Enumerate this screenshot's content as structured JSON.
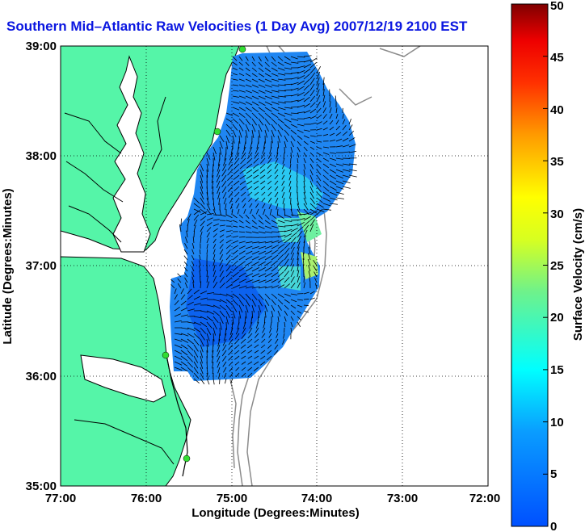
{
  "title": "Southern Mid–Atlantic Raw Velocities (1 Day Avg) 2007/12/19 2100 EST",
  "map": {
    "xlabel": "Longitude (Degrees:Minutes)",
    "ylabel": "Latitude (Degrees:Minutes)",
    "x_ticks": [
      "77:00",
      "76:00",
      "75:00",
      "74:00",
      "73:00",
      "72:00"
    ],
    "y_ticks": [
      "39:00",
      "38:00",
      "37:00",
      "36:00",
      "35:00"
    ],
    "lon_range": [
      -77,
      -72
    ],
    "lat_range": [
      35,
      39
    ],
    "grid": "dotted",
    "colors": {
      "land": "#55f5a8",
      "coast": "#000000",
      "bathymetry": "#909090",
      "vectors": "#000000",
      "stations": "#33dd33"
    }
  },
  "colorbar": {
    "label": "Surface Velocity (cm/s)",
    "ticks": [
      "0",
      "5",
      "10",
      "15",
      "20",
      "25",
      "30",
      "35",
      "40",
      "45",
      "50"
    ],
    "range": [
      0,
      50
    ],
    "colormap": "jet"
  }
}
